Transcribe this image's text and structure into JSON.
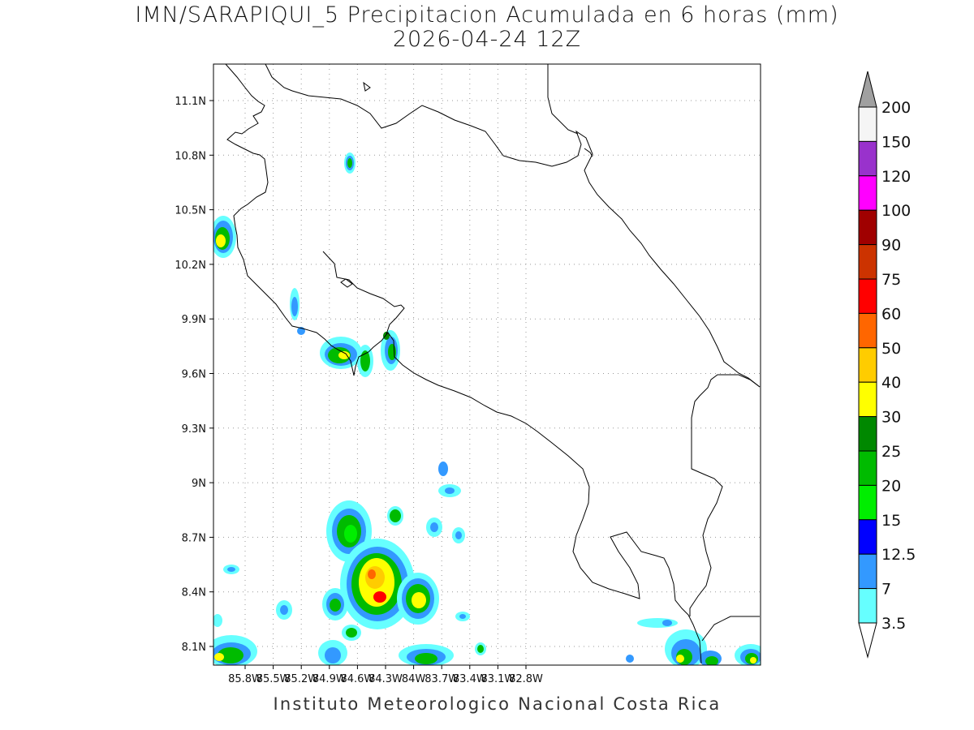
{
  "header": {
    "title": "IMN/SARAPIQUI_5 Precipitacion Acumulada en 6 horas (mm)",
    "subtitle": "2026-04-24 12Z"
  },
  "footer": {
    "credit": "Instituto Meteorologico Nacional Costa Rica"
  },
  "map": {
    "lon_ticks": [
      "85.8W",
      "85.5W",
      "85.2W",
      "84.9W",
      "84.6W",
      "84.3W",
      "84W",
      "83.7W",
      "83.4W",
      "83.1W",
      "82.8W"
    ],
    "lat_ticks": [
      "11.1N",
      "10.8N",
      "10.5N",
      "10.2N",
      "9.9N",
      "9.6N",
      "9.3N",
      "9N",
      "8.7N",
      "8.4N",
      "8.1N"
    ],
    "grid": "dotted"
  },
  "colorbar": {
    "labels": [
      "200",
      "150",
      "120",
      "100",
      "90",
      "75",
      "60",
      "50",
      "40",
      "30",
      "25",
      "20",
      "15",
      "12.5",
      "7",
      "3.5"
    ],
    "colors": [
      "#f5f5f5",
      "#9932cc",
      "#ff00ff",
      "#a00000",
      "#cc3300",
      "#ff0000",
      "#ff6600",
      "#ffcc00",
      "#ffff00",
      "#008800",
      "#00bb00",
      "#00ee00",
      "#0000ff",
      "#3399ff",
      "#66ffff"
    ],
    "top_arrow_color": "#a0a0a0",
    "bottom_arrow_color": "#ffffff"
  }
}
